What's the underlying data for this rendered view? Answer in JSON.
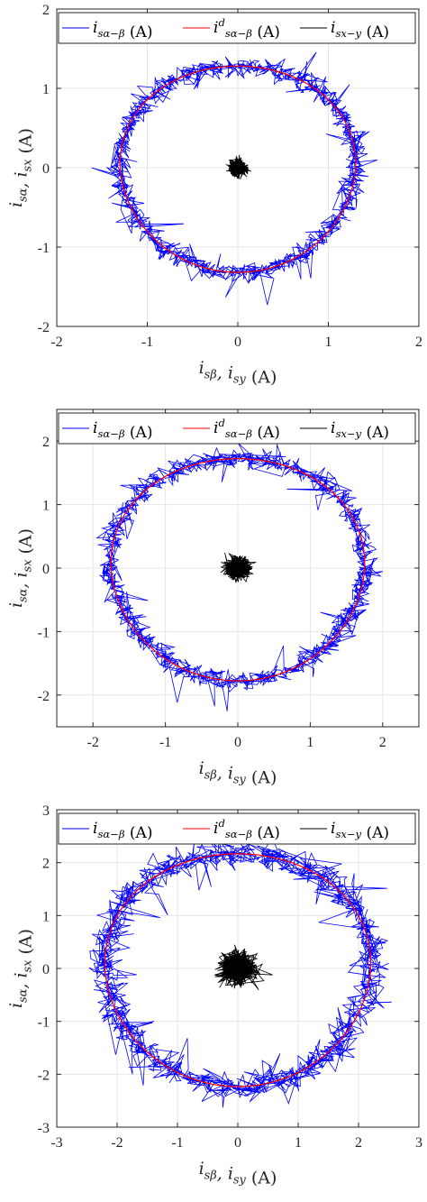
{
  "chart_data": [
    {
      "type": "line",
      "xlabel": "i_{sβ}, i_{sy} (A)",
      "ylabel": "i_{sα}, i_{sx} (A)",
      "xlim": [
        -2,
        2
      ],
      "ylim": [
        -2,
        2
      ],
      "xticks": [
        -2,
        -1,
        0,
        1,
        2
      ],
      "yticks": [
        -2,
        -1,
        0,
        1,
        2
      ],
      "grid": true,
      "legend": "top, horizontal",
      "series": [
        {
          "name": "i_{sα−β} (A)",
          "color": "#0000ff",
          "shape": "noisy circle",
          "radius": 1.3,
          "noise": 0.09
        },
        {
          "name": "i^d_{sα−β} (A)",
          "color": "#ff0000",
          "shape": "circle",
          "radius": 1.3
        },
        {
          "name": "i_{sx−y} (A)",
          "color": "#000000",
          "shape": "cluster at origin",
          "spread": 0.1
        }
      ]
    },
    {
      "type": "line",
      "xlabel": "i_{sβ}, i_{sy} (A)",
      "ylabel": "i_{sα}, i_{sx} (A)",
      "xlim": [
        -2.5,
        2.5
      ],
      "ylim": [
        -2.5,
        2.5
      ],
      "xticks": [
        -2,
        -1,
        0,
        1,
        2
      ],
      "yticks": [
        -2,
        -1,
        0,
        1,
        2
      ],
      "grid": true,
      "legend": "top, horizontal",
      "series": [
        {
          "name": "i_{sα−β} (A)",
          "color": "#0000ff",
          "shape": "noisy circle",
          "radius": 1.75,
          "noise": 0.12
        },
        {
          "name": "i^d_{sα−β} (A)",
          "color": "#ff0000",
          "shape": "circle",
          "radius": 1.75
        },
        {
          "name": "i_{sx−y} (A)",
          "color": "#000000",
          "shape": "cluster at origin",
          "spread": 0.17
        }
      ]
    },
    {
      "type": "line",
      "xlabel": "i_{sβ}, i_{sy} (A)",
      "ylabel": "i_{sα}, i_{sx} (A)",
      "xlim": [
        -3,
        3
      ],
      "ylim": [
        -3,
        3
      ],
      "xticks": [
        -3,
        -2,
        -1,
        0,
        1,
        2,
        3
      ],
      "yticks": [
        -3,
        -2,
        -1,
        0,
        1,
        2,
        3
      ],
      "grid": true,
      "legend": "top, horizontal",
      "series": [
        {
          "name": "i_{sα−β} (A)",
          "color": "#0000ff",
          "shape": "noisy circle",
          "radius": 2.2,
          "noise": 0.2
        },
        {
          "name": "i^d_{sα−β} (A)",
          "color": "#ff0000",
          "shape": "circle",
          "radius": 2.2
        },
        {
          "name": "i_{sx−y} (A)",
          "color": "#000000",
          "shape": "cluster at origin",
          "spread": 0.3
        }
      ]
    }
  ]
}
